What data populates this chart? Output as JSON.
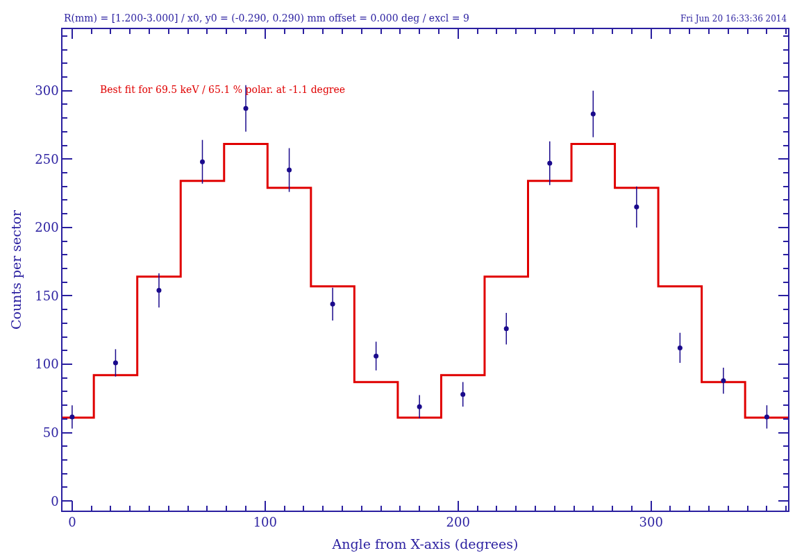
{
  "chart_data": {
    "type": "scatter",
    "xlabel": "Angle from X-axis (degrees)",
    "ylabel": "Counts per sector",
    "annotations": [
      "R(mm) = [1.200-3.000] / x0, y0 = (-0.290, 0.290) mm offset = 0.000 deg / excl = 9",
      "Fri Jun 20 16:33:36 2014",
      "Best fit for 69.5 keV / 65.1 % polar. at -1.1 degree"
    ],
    "x": [
      0,
      22.5,
      45,
      67.5,
      90,
      112.5,
      135,
      157.5,
      180,
      202.5,
      225,
      247.5,
      270,
      292.5,
      315,
      337.5,
      360
    ],
    "series": [
      {
        "color": "#1a0a8c",
        "marker": "circle",
        "values": [
          61.5,
          101,
          154,
          248,
          287,
          242,
          144,
          106,
          69,
          78,
          126,
          247,
          283,
          215,
          112,
          88,
          61.5
        ],
        "errors": [
          8.5,
          10,
          12.5,
          16,
          17,
          16,
          12,
          10.5,
          8.5,
          9,
          11.5,
          16,
          17,
          15,
          11,
          9.5,
          8.5
        ]
      },
      {
        "type": "step",
        "color": "#e00000",
        "x": [
          -5,
          11.25,
          33.75,
          56.25,
          78.75,
          101.25,
          123.75,
          146.25,
          168.75,
          191.25,
          213.75,
          236.25,
          258.75,
          281.25,
          303.75,
          326.25,
          348.75,
          371
        ],
        "values": [
          61,
          92,
          164,
          234,
          261,
          229,
          157,
          87,
          61,
          92,
          164,
          234,
          261,
          229,
          157,
          87,
          61,
          61
        ]
      }
    ],
    "xlim": [
      -5,
      371
    ],
    "xticks": [
      0,
      100,
      200,
      300
    ],
    "ylim": [
      -7,
      345
    ],
    "yticks": [
      0,
      50,
      100,
      150,
      200,
      250,
      300
    ]
  }
}
